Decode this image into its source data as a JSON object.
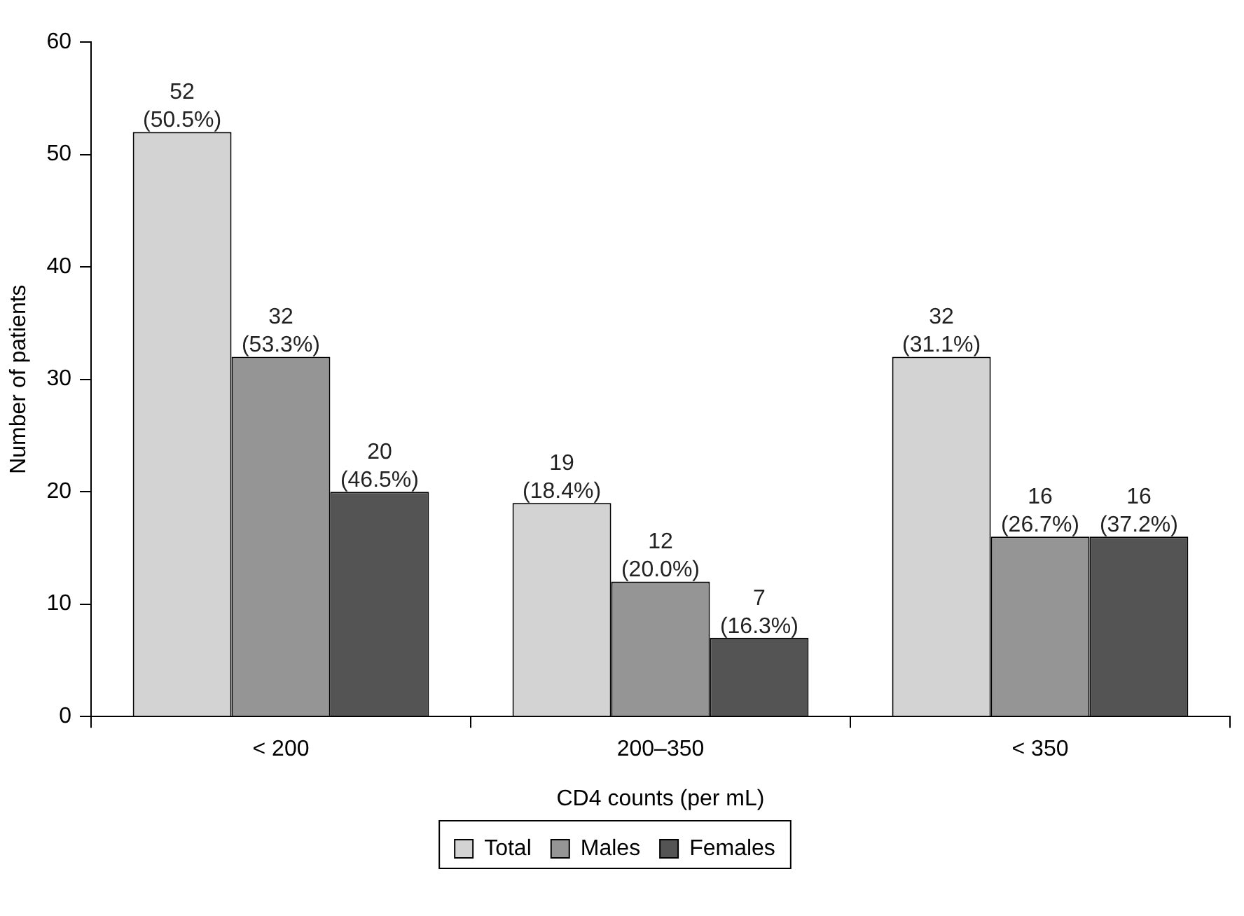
{
  "chart_data": {
    "type": "bar",
    "xlabel": "CD4 counts (per mL)",
    "ylabel": "Number of patients",
    "categories": [
      "< 200",
      "200–350",
      "< 350"
    ],
    "series": [
      {
        "name": "Total",
        "color": "#d3d3d3",
        "values": [
          52,
          19,
          32
        ],
        "value_labels": [
          "52 (50.5%)",
          "19 (18.4%)",
          "32 (31.1%)"
        ]
      },
      {
        "name": "Males",
        "color": "#959595",
        "values": [
          32,
          12,
          16
        ],
        "value_labels": [
          "32 (53.3%)",
          "12 (20.0%)",
          "16 (26.7%)"
        ]
      },
      {
        "name": "Females",
        "color": "#545454",
        "values": [
          20,
          7,
          16
        ],
        "value_labels": [
          "20 (46.5%)",
          "7 (16.3%)",
          "16 (37.2%)"
        ]
      }
    ],
    "ylim": [
      0,
      60
    ],
    "yticks": [
      0,
      10,
      20,
      30,
      40,
      50,
      60
    ],
    "grid": false,
    "legend": "bottom"
  }
}
